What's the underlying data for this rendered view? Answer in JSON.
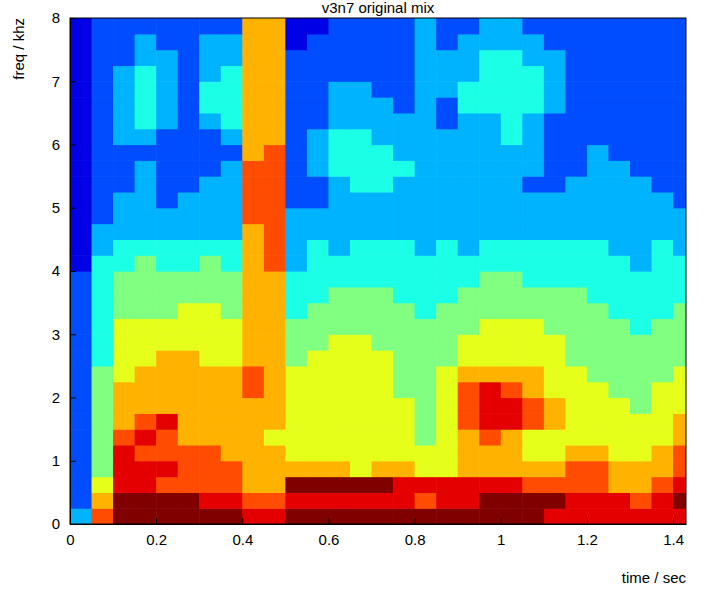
{
  "chart_data": {
    "type": "heatmap",
    "title": "v3n7 original mix",
    "x_label": "time / sec",
    "y_label": "freq / khz",
    "xlim": [
      0,
      1.43
    ],
    "ylim": [
      0,
      8
    ],
    "xticks": [
      0,
      0.2,
      0.4,
      0.6,
      0.8,
      1,
      1.2,
      1.4
    ],
    "yticks": [
      0,
      1,
      2,
      3,
      4,
      5,
      6,
      7,
      8
    ],
    "clim": [
      0,
      10
    ],
    "x": [
      0.025,
      0.075,
      0.125,
      0.175,
      0.225,
      0.275,
      0.325,
      0.375,
      0.425,
      0.475,
      0.525,
      0.575,
      0.625,
      0.675,
      0.725,
      0.775,
      0.825,
      0.875,
      0.925,
      0.975,
      1.025,
      1.075,
      1.125,
      1.175,
      1.225,
      1.275,
      1.325,
      1.375,
      1.425
    ],
    "y": [
      0.125,
      0.375,
      0.625,
      0.875,
      1.125,
      1.375,
      1.625,
      1.875,
      2.125,
      2.375,
      2.625,
      2.875,
      3.125,
      3.375,
      3.625,
      3.875,
      4.125,
      4.375,
      4.625,
      4.875,
      5.125,
      5.375,
      5.625,
      5.875,
      6.125,
      6.375,
      6.625,
      6.875,
      7.125,
      7.375,
      7.625,
      7.875
    ],
    "cells": [
      [
        3,
        8,
        10,
        10,
        10,
        10,
        10,
        10,
        9,
        9,
        10,
        10,
        10,
        10,
        10,
        10,
        10,
        10,
        10,
        10,
        10,
        10,
        9,
        9,
        9,
        9,
        9,
        9,
        9
      ],
      [
        2,
        7,
        10,
        10,
        10,
        10,
        9,
        9,
        8,
        8,
        9,
        9,
        9,
        9,
        9,
        9,
        8,
        9,
        9,
        10,
        10,
        10,
        10,
        9,
        9,
        9,
        8,
        9,
        10
      ],
      [
        2,
        6,
        9,
        9,
        8,
        8,
        8,
        8,
        7,
        7,
        10,
        10,
        10,
        10,
        10,
        9,
        9,
        9,
        9,
        9,
        9,
        8,
        8,
        8,
        8,
        7,
        7,
        8,
        9
      ],
      [
        2,
        5,
        9,
        9,
        9,
        8,
        8,
        8,
        7,
        7,
        7,
        7,
        7,
        6,
        7,
        7,
        6,
        6,
        7,
        7,
        7,
        7,
        7,
        8,
        8,
        7,
        7,
        7,
        8
      ],
      [
        2,
        5,
        9,
        8,
        8,
        8,
        8,
        7,
        7,
        7,
        6,
        6,
        6,
        6,
        6,
        6,
        6,
        6,
        7,
        7,
        7,
        6,
        6,
        7,
        7,
        6,
        6,
        7,
        8
      ],
      [
        2,
        5,
        8,
        9,
        8,
        7,
        7,
        7,
        7,
        6,
        6,
        6,
        6,
        6,
        6,
        6,
        5,
        6,
        7,
        8,
        7,
        6,
        6,
        6,
        6,
        6,
        6,
        6,
        7
      ],
      [
        2,
        5,
        7,
        8,
        9,
        7,
        7,
        7,
        7,
        7,
        6,
        6,
        6,
        6,
        6,
        6,
        5,
        6,
        8,
        9,
        9,
        8,
        7,
        6,
        6,
        6,
        6,
        6,
        7
      ],
      [
        2,
        5,
        7,
        7,
        7,
        7,
        7,
        7,
        7,
        7,
        6,
        6,
        6,
        6,
        6,
        6,
        5,
        6,
        8,
        9,
        9,
        8,
        7,
        6,
        6,
        6,
        5,
        6,
        6
      ],
      [
        2,
        5,
        7,
        7,
        7,
        7,
        7,
        7,
        8,
        7,
        6,
        6,
        6,
        6,
        6,
        5,
        5,
        6,
        8,
        9,
        8,
        7,
        6,
        6,
        6,
        5,
        5,
        6,
        6
      ],
      [
        2,
        5,
        6,
        7,
        7,
        7,
        7,
        7,
        8,
        7,
        6,
        6,
        6,
        6,
        6,
        5,
        5,
        6,
        7,
        7,
        7,
        7,
        6,
        6,
        5,
        5,
        5,
        5,
        6
      ],
      [
        2,
        4,
        6,
        6,
        7,
        7,
        6,
        6,
        7,
        7,
        5,
        6,
        6,
        6,
        6,
        5,
        5,
        5,
        6,
        6,
        6,
        6,
        6,
        5,
        5,
        5,
        5,
        5,
        5
      ],
      [
        2,
        4,
        6,
        6,
        6,
        6,
        6,
        6,
        7,
        7,
        5,
        5,
        6,
        6,
        5,
        5,
        5,
        5,
        6,
        6,
        6,
        6,
        6,
        5,
        5,
        5,
        5,
        5,
        5
      ],
      [
        2,
        4,
        6,
        6,
        6,
        6,
        6,
        6,
        7,
        7,
        5,
        5,
        5,
        5,
        5,
        5,
        5,
        5,
        5,
        6,
        6,
        6,
        5,
        5,
        5,
        5,
        4,
        5,
        5
      ],
      [
        2,
        4,
        5,
        5,
        5,
        6,
        6,
        5,
        7,
        7,
        4,
        5,
        5,
        5,
        5,
        5,
        4,
        5,
        5,
        5,
        5,
        5,
        5,
        5,
        5,
        4,
        4,
        4,
        5
      ],
      [
        2,
        4,
        5,
        5,
        5,
        5,
        5,
        5,
        7,
        7,
        4,
        4,
        5,
        5,
        5,
        4,
        4,
        4,
        5,
        5,
        5,
        5,
        5,
        5,
        4,
        4,
        4,
        4,
        4
      ],
      [
        2,
        4,
        5,
        5,
        5,
        5,
        5,
        5,
        7,
        7,
        4,
        4,
        4,
        4,
        4,
        4,
        4,
        4,
        4,
        5,
        5,
        4,
        4,
        4,
        4,
        4,
        4,
        4,
        4
      ],
      [
        1,
        4,
        4,
        5,
        4,
        4,
        5,
        4,
        7,
        8,
        3,
        4,
        4,
        4,
        4,
        4,
        4,
        4,
        4,
        4,
        4,
        4,
        4,
        4,
        4,
        4,
        3,
        4,
        4
      ],
      [
        1,
        3,
        4,
        4,
        4,
        4,
        4,
        4,
        7,
        8,
        3,
        4,
        3,
        4,
        4,
        4,
        3,
        4,
        3,
        4,
        4,
        4,
        4,
        4,
        4,
        3,
        3,
        4,
        3
      ],
      [
        1,
        3,
        3,
        3,
        3,
        3,
        3,
        3,
        7,
        8,
        3,
        3,
        3,
        3,
        3,
        3,
        3,
        3,
        3,
        3,
        3,
        3,
        3,
        3,
        3,
        3,
        3,
        3,
        3
      ],
      [
        1,
        2,
        3,
        3,
        3,
        3,
        3,
        3,
        8,
        8,
        3,
        3,
        3,
        3,
        3,
        3,
        3,
        3,
        3,
        3,
        3,
        3,
        3,
        3,
        3,
        3,
        3,
        3,
        3
      ],
      [
        1,
        2,
        3,
        3,
        2,
        3,
        3,
        3,
        8,
        8,
        2,
        2,
        3,
        3,
        3,
        3,
        3,
        3,
        3,
        3,
        3,
        3,
        3,
        3,
        3,
        3,
        3,
        3,
        2
      ],
      [
        1,
        2,
        2,
        3,
        2,
        2,
        3,
        3,
        8,
        8,
        2,
        2,
        3,
        4,
        4,
        3,
        3,
        3,
        3,
        3,
        3,
        2,
        2,
        3,
        3,
        3,
        3,
        2,
        2
      ],
      [
        1,
        2,
        2,
        3,
        2,
        2,
        2,
        3,
        8,
        8,
        2,
        3,
        4,
        4,
        4,
        4,
        3,
        3,
        3,
        3,
        3,
        3,
        2,
        2,
        3,
        3,
        2,
        2,
        2
      ],
      [
        1,
        2,
        2,
        2,
        2,
        2,
        2,
        2,
        7,
        8,
        2,
        3,
        4,
        4,
        4,
        3,
        3,
        3,
        3,
        3,
        3,
        3,
        2,
        2,
        3,
        2,
        2,
        2,
        2
      ],
      [
        1,
        2,
        3,
        3,
        2,
        2,
        2,
        3,
        7,
        7,
        2,
        3,
        4,
        4,
        3,
        3,
        3,
        3,
        3,
        3,
        4,
        3,
        2,
        2,
        2,
        2,
        2,
        2,
        2
      ],
      [
        1,
        2,
        3,
        4,
        3,
        2,
        3,
        4,
        7,
        7,
        2,
        2,
        3,
        3,
        3,
        3,
        3,
        2,
        3,
        3,
        4,
        3,
        2,
        2,
        2,
        2,
        2,
        2,
        2
      ],
      [
        1,
        2,
        3,
        4,
        3,
        2,
        4,
        4,
        7,
        7,
        2,
        2,
        3,
        3,
        3,
        2,
        3,
        2,
        4,
        4,
        4,
        4,
        3,
        2,
        2,
        2,
        2,
        2,
        2
      ],
      [
        1,
        2,
        3,
        4,
        3,
        2,
        4,
        4,
        7,
        7,
        2,
        2,
        3,
        3,
        2,
        2,
        3,
        3,
        4,
        4,
        4,
        4,
        3,
        2,
        2,
        2,
        2,
        2,
        2
      ],
      [
        1,
        2,
        3,
        4,
        3,
        2,
        3,
        4,
        7,
        7,
        2,
        2,
        2,
        2,
        2,
        2,
        3,
        3,
        3,
        4,
        4,
        4,
        3,
        2,
        2,
        2,
        2,
        2,
        2
      ],
      [
        1,
        2,
        2,
        3,
        3,
        2,
        3,
        3,
        7,
        7,
        2,
        2,
        2,
        2,
        2,
        2,
        3,
        3,
        3,
        4,
        4,
        3,
        3,
        2,
        2,
        2,
        2,
        2,
        2
      ],
      [
        1,
        2,
        2,
        3,
        2,
        2,
        3,
        3,
        7,
        7,
        1,
        2,
        2,
        2,
        2,
        2,
        3,
        2,
        3,
        3,
        3,
        3,
        2,
        2,
        2,
        2,
        2,
        2,
        2
      ],
      [
        1,
        2,
        2,
        2,
        2,
        2,
        2,
        2,
        7,
        7,
        1,
        1,
        2,
        2,
        2,
        2,
        3,
        2,
        2,
        3,
        3,
        2,
        2,
        2,
        2,
        2,
        2,
        2,
        2
      ]
    ]
  }
}
